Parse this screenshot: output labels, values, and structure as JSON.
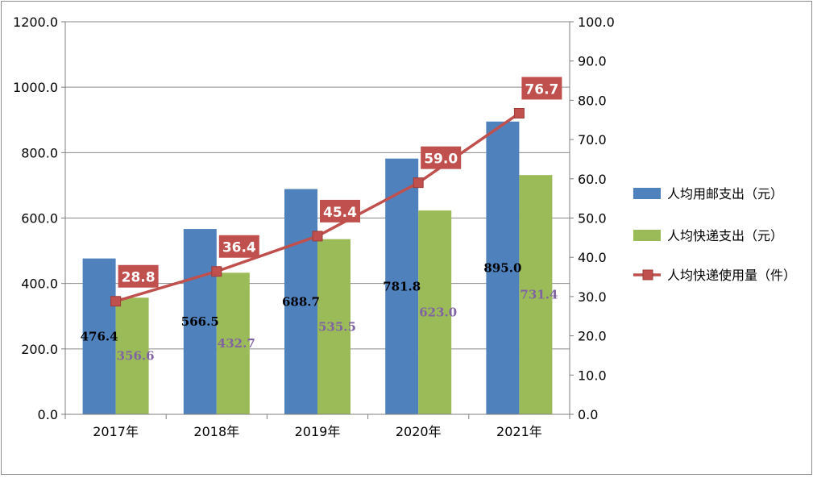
{
  "chart_data": {
    "type": "bar",
    "categories": [
      "2017年",
      "2018年",
      "2019年",
      "2020年",
      "2021年"
    ],
    "y_left": {
      "min": 0,
      "max": 1200,
      "step": 200,
      "ticks": [
        "0.0",
        "200.0",
        "400.0",
        "600.0",
        "800.0",
        "1000.0",
        "1200.0"
      ]
    },
    "y_right": {
      "min": 0,
      "max": 100,
      "step": 10,
      "ticks": [
        "0.0",
        "10.0",
        "20.0",
        "30.0",
        "40.0",
        "50.0",
        "60.0",
        "70.0",
        "80.0",
        "90.0",
        "100.0"
      ]
    },
    "grid": true,
    "legend_position": "right",
    "series": [
      {
        "name": "人均用邮支出（元）",
        "kind": "bar",
        "axis": "left",
        "color": "#4f81bd",
        "label_color": "#000000",
        "values": [
          476.4,
          566.5,
          688.7,
          781.8,
          895.0
        ],
        "labels": [
          "476.4",
          "566.5",
          "688.7",
          "781.8",
          "895.0"
        ]
      },
      {
        "name": "人均快递支出（元）",
        "kind": "bar",
        "axis": "left",
        "color": "#9bbb59",
        "label_color": "#8064a2",
        "values": [
          356.6,
          432.7,
          535.5,
          623.0,
          731.4
        ],
        "labels": [
          "356.6",
          "432.7",
          "535.5",
          "623.0",
          "731.4"
        ]
      },
      {
        "name": "人均快递使用量（件）",
        "kind": "line",
        "axis": "right",
        "color": "#c0504d",
        "label_color": "#ffffff",
        "values": [
          28.8,
          36.4,
          45.4,
          59.0,
          76.7
        ],
        "labels": [
          "28.8",
          "36.4",
          "45.4",
          "59.0",
          "76.7"
        ]
      }
    ]
  }
}
